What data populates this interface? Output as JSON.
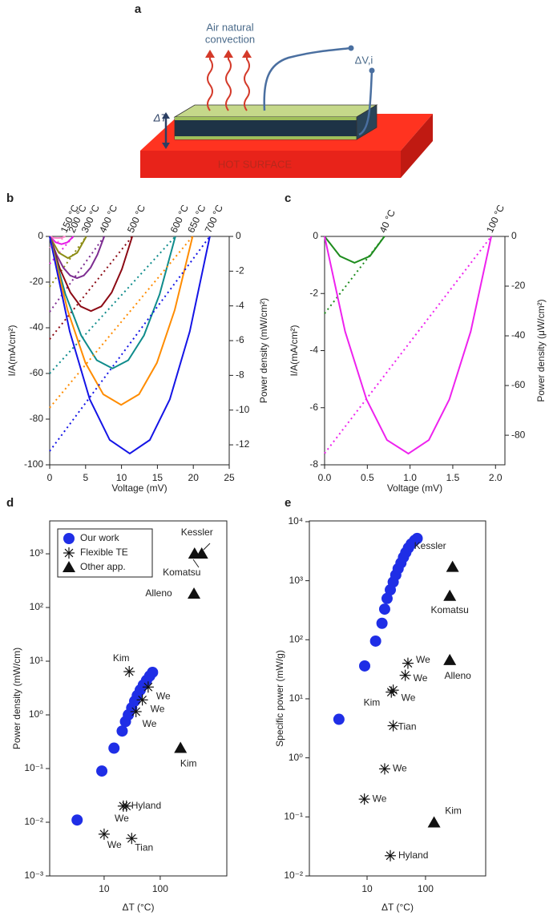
{
  "panel_a": {
    "label": "a",
    "convection": [
      "Air natural",
      "convection"
    ],
    "voltage": "ΔV,i",
    "delta_t": "ΔT",
    "surface": "HOT SURFACE"
  },
  "chart_data": [
    {
      "panel": "b",
      "type": "line",
      "xlabel": "Voltage (mV)",
      "ylabel": "I/A(mA/cm²)",
      "y2label": "Power density (mW/cm²)",
      "xlim": [
        0,
        25
      ],
      "xticks": [
        0,
        5,
        10,
        15,
        20,
        25
      ],
      "ylim": [
        -100,
        0
      ],
      "yticks": [
        -100,
        -80,
        -60,
        -40,
        -20,
        0
      ],
      "y2lim": [
        -13.15,
        0
      ],
      "y2ticks": [
        -12,
        -10,
        -8,
        -6,
        -4,
        -2,
        0
      ],
      "series": [
        {
          "name": "150 °C",
          "color": "#ff88cc",
          "axis": "y2",
          "x": [
            0,
            0.55,
            1.1,
            1.65,
            2.2
          ],
          "values": [
            0,
            -0.08,
            -0.1,
            -0.08,
            0
          ]
        },
        {
          "color": "#ff88cc",
          "style": "dotted",
          "x": [
            0,
            2.2
          ],
          "values": [
            -5,
            0
          ]
        },
        {
          "name": "200 °C",
          "color": "#e61ee6",
          "axis": "y2",
          "x": [
            0,
            0.83,
            1.65,
            2.48,
            3.3
          ],
          "values": [
            0,
            -0.34,
            -0.45,
            -0.34,
            0
          ]
        },
        {
          "color": "#e61ee6",
          "style": "dotted",
          "x": [
            0,
            3.3
          ],
          "values": [
            -12,
            0
          ]
        },
        {
          "name": "300 °C",
          "color": "#8c8c14",
          "axis": "y2",
          "x": [
            0,
            1.28,
            2.55,
            3.83,
            5.1
          ],
          "values": [
            0,
            -0.94,
            -1.25,
            -0.94,
            0
          ]
        },
        {
          "color": "#8c8c14",
          "style": "dotted",
          "x": [
            0,
            5.1
          ],
          "values": [
            -22,
            0
          ]
        },
        {
          "name": "400 °C",
          "color": "#7d2d91",
          "axis": "y2",
          "x": [
            0,
            0.95,
            1.9,
            2.85,
            3.8,
            4.75,
            5.7,
            6.65,
            7.6
          ],
          "values": [
            0,
            -1.05,
            -1.8,
            -2.25,
            -2.4,
            -2.25,
            -1.8,
            -1.05,
            0
          ]
        },
        {
          "color": "#7d2d91",
          "style": "dotted",
          "x": [
            0,
            7.6
          ],
          "values": [
            -33,
            0
          ]
        },
        {
          "name": "500 °C",
          "color": "#8c0a14",
          "axis": "y2",
          "x": [
            0,
            1.44,
            2.88,
            4.31,
            5.75,
            7.19,
            8.63,
            10.06,
            11.5
          ],
          "values": [
            0,
            -1.88,
            -3.23,
            -4.03,
            -4.3,
            -4.03,
            -3.23,
            -1.88,
            0
          ]
        },
        {
          "color": "#8c0a14",
          "style": "dotted",
          "x": [
            0,
            11.5
          ],
          "values": [
            -45,
            0
          ]
        },
        {
          "name": "600 °C",
          "color": "#0f8c8c",
          "axis": "y2",
          "x": [
            0,
            2.19,
            4.38,
            6.56,
            8.75,
            10.94,
            13.13,
            15.31,
            17.5
          ],
          "values": [
            0,
            -3.33,
            -5.7,
            -7.13,
            -7.6,
            -7.13,
            -5.7,
            -3.33,
            0
          ]
        },
        {
          "color": "#0f8c8c",
          "style": "dotted",
          "x": [
            0,
            17.5
          ],
          "values": [
            -60,
            0
          ]
        },
        {
          "name": "650 °C",
          "color": "#ff8c00",
          "axis": "y2",
          "x": [
            0,
            2.49,
            4.98,
            7.46,
            9.95,
            12.44,
            14.93,
            17.41,
            19.9
          ],
          "values": [
            0,
            -4.24,
            -7.28,
            -9.09,
            -9.7,
            -9.09,
            -7.28,
            -4.24,
            0
          ]
        },
        {
          "color": "#ff8c00",
          "style": "dotted",
          "x": [
            0,
            19.9
          ],
          "values": [
            -75,
            0
          ]
        },
        {
          "name": "700 °C",
          "color": "#1414e6",
          "axis": "y2",
          "x": [
            0,
            2.79,
            5.58,
            8.36,
            11.15,
            13.94,
            16.73,
            19.51,
            22.3
          ],
          "values": [
            0,
            -5.47,
            -9.38,
            -11.72,
            -12.5,
            -11.72,
            -9.38,
            -5.47,
            0
          ]
        },
        {
          "color": "#1414e6",
          "style": "dotted",
          "x": [
            0,
            22.3
          ],
          "values": [
            -94,
            0
          ]
        }
      ]
    },
    {
      "panel": "c",
      "type": "line",
      "xlabel": "Voltage (mV)",
      "ylabel": "I/A(mA/cm²)",
      "y2label": "Power density (μW/cm²)",
      "xlim": [
        0,
        2.11
      ],
      "xticks": [
        {
          "value": 0,
          "label": "0.0"
        },
        {
          "value": 0.5,
          "label": "0.5"
        },
        {
          "value": 1,
          "label": "1.0"
        },
        {
          "value": 1.5,
          "label": "1.5"
        },
        {
          "value": 2,
          "label": "2.0"
        }
      ],
      "ylim": [
        -8,
        0
      ],
      "yticks": [
        -8,
        -6,
        -4,
        -2,
        0
      ],
      "y2lim": [
        -91.9,
        0
      ],
      "y2ticks": [
        -80,
        -60,
        -40,
        -20,
        0
      ],
      "series": [
        {
          "name": "40 °C",
          "color": "#1e8c1e",
          "axis": "y2",
          "x": [
            0,
            0.18,
            0.35,
            0.53,
            0.7
          ],
          "values": [
            0,
            -7.95,
            -10.6,
            -7.95,
            0
          ]
        },
        {
          "color": "#1e8c1e",
          "style": "dotted",
          "x": [
            0,
            0.7
          ],
          "values": [
            -2.7,
            0
          ]
        },
        {
          "name": "100 °C",
          "color": "#ee22ee",
          "axis": "y2",
          "x": [
            0,
            0.24,
            0.49,
            0.73,
            0.98,
            1.22,
            1.46,
            1.71,
            1.95
          ],
          "values": [
            0,
            -38.24,
            -65.55,
            -81.94,
            -87.4,
            -81.94,
            -65.55,
            -38.24,
            0
          ]
        },
        {
          "color": "#ee22ee",
          "style": "dotted",
          "x": [
            0,
            1.95
          ],
          "values": [
            -7.6,
            0
          ]
        }
      ]
    },
    {
      "panel": "d",
      "type": "scatter",
      "xlabel": "ΔT (°C)",
      "ylabel": "Power density (mW/cm)",
      "xlog": true,
      "ylog": true,
      "legend": "upper left",
      "xlim": [
        1.07,
        1540
      ],
      "xticks": [
        10,
        100
      ],
      "ylim": [
        0.001,
        4100
      ],
      "yticks": [
        {
          "value": 0.001,
          "label": "10⁻³"
        },
        {
          "value": 0.01,
          "label": "10⁻²"
        },
        {
          "value": 0.1,
          "label": "10⁻¹"
        },
        {
          "value": 1,
          "label": "10⁰"
        },
        {
          "value": 10,
          "label": "10¹"
        },
        {
          "value": 100,
          "label": "10²"
        },
        {
          "value": 1000,
          "label": "10³"
        }
      ],
      "series": [
        {
          "name": "Our work",
          "marker": "circle",
          "color": "#1f2ee6",
          "x": [
            3.3,
            9.1,
            15,
            21,
            24,
            27,
            31,
            35,
            39,
            44,
            50,
            57,
            65,
            73
          ],
          "values": [
            0.011,
            0.09,
            0.24,
            0.5,
            0.75,
            1.0,
            1.35,
            1.8,
            2.3,
            2.9,
            3.6,
            4.4,
            5.3,
            6.2
          ]
        },
        {
          "name": "Flexible TE",
          "marker": "star",
          "color": "#111111",
          "x": [
            28,
            61,
            48,
            37,
            25,
            22,
            10,
            31
          ],
          "values": [
            6.4,
            3.3,
            1.9,
            1.15,
            0.02,
            0.02,
            0.006,
            0.005
          ],
          "labels": [
            "Kim",
            "We",
            "We",
            "We",
            "Hyland",
            "We",
            "We",
            "Tian"
          ]
        },
        {
          "name": "Other app.",
          "marker": "triangle",
          "color": "#111111",
          "x": [
            550,
            410,
            400,
            230
          ],
          "values": [
            1000,
            1000,
            180,
            0.24
          ],
          "labels": [
            "Kessler",
            "Komatsu",
            "Alleno",
            "Kim"
          ]
        }
      ]
    },
    {
      "panel": "e",
      "type": "scatter",
      "xlabel": "ΔT (°C)",
      "ylabel": "Specific power (mW/g)",
      "xlog": true,
      "ylog": true,
      "xlim": [
        1.03,
        1070
      ],
      "xticks": [
        10,
        100
      ],
      "ylim": [
        0.01,
        10300
      ],
      "yticks": [
        {
          "value": 0.01,
          "label": "10⁻²"
        },
        {
          "value": 0.1,
          "label": "10⁻¹"
        },
        {
          "value": 1,
          "label": "10⁰"
        },
        {
          "value": 10,
          "label": "10¹"
        },
        {
          "value": 100,
          "label": "10²"
        },
        {
          "value": 1000,
          "label": "10³"
        },
        {
          "value": 10000,
          "label": "10⁴"
        }
      ],
      "series": [
        {
          "name": "Our work",
          "marker": "circle",
          "color": "#1f2ee6",
          "x": [
            3.3,
            9.1,
            14,
            18,
            20,
            22,
            25,
            28,
            31,
            34,
            38,
            42,
            46,
            51,
            57,
            65,
            72
          ],
          "values": [
            4.5,
            36,
            95,
            190,
            330,
            500,
            700,
            950,
            1250,
            1600,
            2000,
            2500,
            3000,
            3600,
            4200,
            4800,
            5200
          ]
        },
        {
          "name": "Flexible TE",
          "marker": "star",
          "color": "#111111",
          "x": [
            50,
            45,
            28,
            26,
            28,
            20,
            9,
            25
          ],
          "values": [
            40,
            25,
            14,
            13,
            3.5,
            0.65,
            0.2,
            0.022
          ],
          "labels": [
            "We",
            "We",
            "We",
            "Kim",
            "Tian",
            "We",
            "We",
            "Hyland"
          ]
        },
        {
          "name": "Other app.",
          "marker": "triangle",
          "color": "#111111",
          "x": [
            290,
            260,
            260,
            140
          ],
          "values": [
            1700,
            550,
            45,
            0.08
          ],
          "labels": [
            "Kessler",
            "Komatsu",
            "Alleno",
            "Kim"
          ]
        }
      ]
    }
  ]
}
